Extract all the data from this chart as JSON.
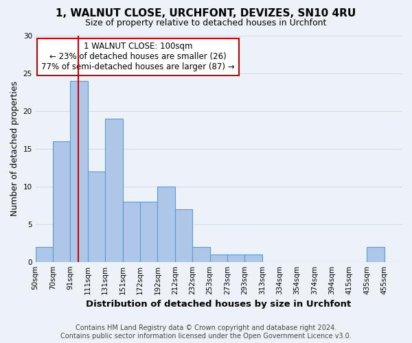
{
  "title": "1, WALNUT CLOSE, URCHFONT, DEVIZES, SN10 4RU",
  "subtitle": "Size of property relative to detached houses in Urchfont",
  "xlabel": "Distribution of detached houses by size in Urchfont",
  "ylabel": "Number of detached properties",
  "bin_labels": [
    "50sqm",
    "70sqm",
    "91sqm",
    "111sqm",
    "131sqm",
    "151sqm",
    "172sqm",
    "192sqm",
    "212sqm",
    "232sqm",
    "253sqm",
    "273sqm",
    "293sqm",
    "313sqm",
    "334sqm",
    "354sqm",
    "374sqm",
    "394sqm",
    "415sqm",
    "435sqm",
    "455sqm"
  ],
  "bar_heights": [
    2,
    16,
    24,
    12,
    19,
    8,
    8,
    10,
    7,
    2,
    1,
    1,
    1,
    0,
    0,
    0,
    0,
    0,
    0,
    2,
    0
  ],
  "bar_color": "#aec6e8",
  "bar_edge_color": "#5b9bd5",
  "vline_x": 3,
  "vline_color": "#cc0000",
  "ylim": [
    0,
    30
  ],
  "yticks": [
    0,
    5,
    10,
    15,
    20,
    25,
    30
  ],
  "annotation_title": "1 WALNUT CLOSE: 100sqm",
  "annotation_line1": "← 23% of detached houses are smaller (26)",
  "annotation_line2": "77% of semi-detached houses are larger (87) →",
  "annotation_box_color": "#ffffff",
  "annotation_box_edge": "#cc0000",
  "grid_color": "#d0dce8",
  "bg_color": "#edf2f9",
  "footer1": "Contains HM Land Registry data © Crown copyright and database right 2024.",
  "footer2": "Contains public sector information licensed under the Open Government Licence v3.0.",
  "title_fontsize": 11,
  "subtitle_fontsize": 9,
  "xlabel_fontsize": 9.5,
  "ylabel_fontsize": 9,
  "tick_fontsize": 7.5,
  "annotation_fontsize": 8.5,
  "footer_fontsize": 7
}
